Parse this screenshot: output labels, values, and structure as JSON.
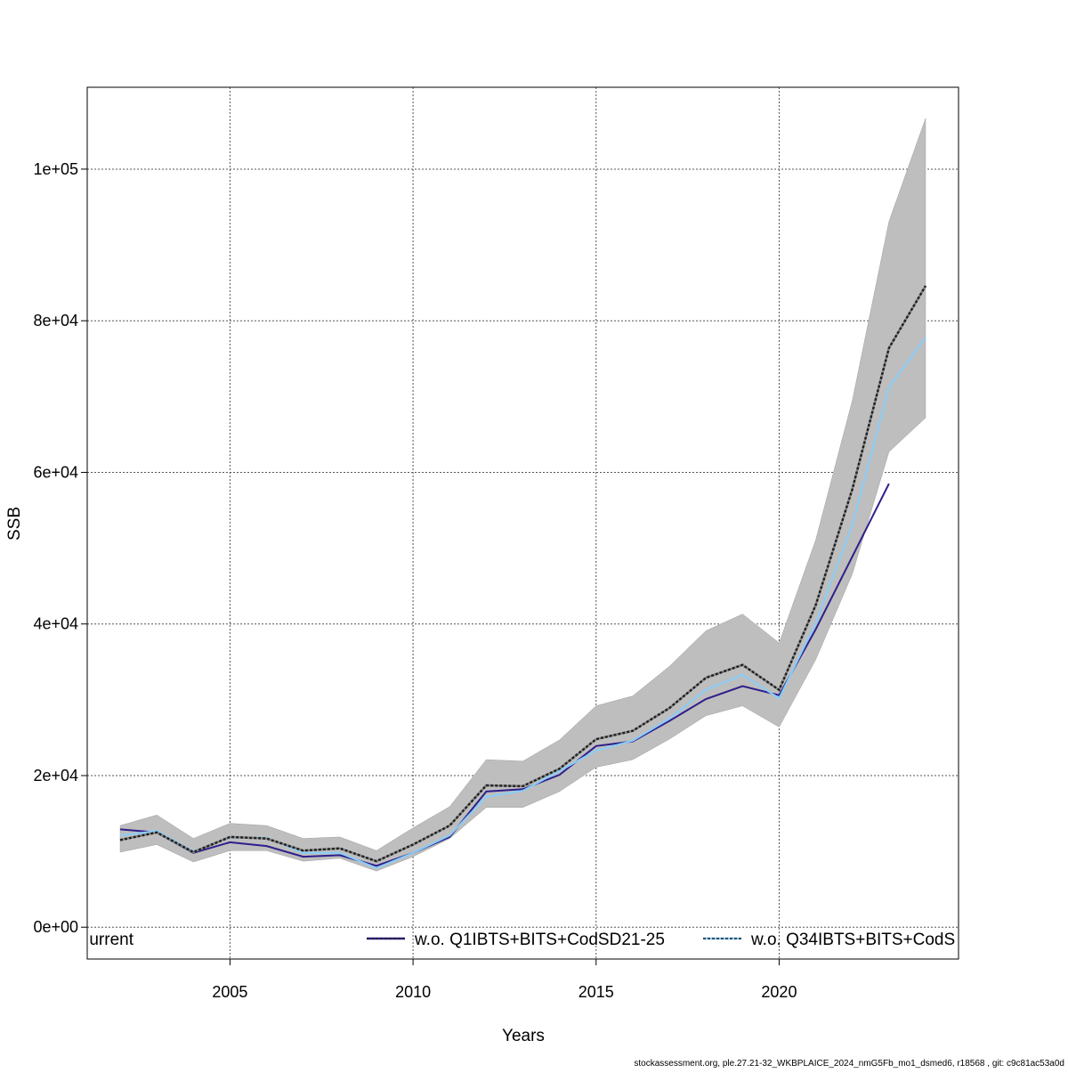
{
  "chart_data": {
    "type": "line",
    "title": "",
    "xlabel": "Years",
    "ylabel": "SSB",
    "xlim": [
      2001.1,
      2024.9
    ],
    "ylim": [
      -4200,
      110800
    ],
    "grid": true,
    "x_ticks": [
      2005,
      2010,
      2015,
      2020
    ],
    "x_tick_labels": [
      "2005",
      "2010",
      "2015",
      "2020"
    ],
    "y_ticks": [
      0,
      20000,
      40000,
      60000,
      80000,
      100000
    ],
    "y_tick_labels": [
      "0e+00",
      "2e+04",
      "4e+04",
      "6e+04",
      "8e+04",
      "1e+05"
    ],
    "legend_placement": "bottom",
    "x": [
      2002,
      2003,
      2004,
      2005,
      2006,
      2007,
      2008,
      2009,
      2010,
      2011,
      2012,
      2013,
      2014,
      2015,
      2016,
      2017,
      2018,
      2019,
      2020,
      2021,
      2022,
      2023,
      2024
    ],
    "band": {
      "color": "#bebebe",
      "lower": [
        9900,
        10900,
        8600,
        10100,
        10100,
        8700,
        9100,
        7400,
        9300,
        11700,
        15800,
        15800,
        17900,
        21100,
        22100,
        24800,
        27900,
        29200,
        26400,
        35300,
        46600,
        62700,
        67200
      ],
      "upper": [
        13400,
        14800,
        11700,
        13700,
        13400,
        11700,
        11900,
        10100,
        13100,
        15900,
        22100,
        21900,
        24700,
        29200,
        30500,
        34400,
        39100,
        41300,
        37500,
        51100,
        69500,
        93100,
        106700
      ]
    },
    "series": [
      {
        "name": "urrent",
        "color": "#222222",
        "dashed": true,
        "values": [
          11500,
          12500,
          9900,
          11900,
          11700,
          10100,
          10400,
          8700,
          10900,
          13400,
          18700,
          18600,
          20900,
          24800,
          25900,
          28900,
          32900,
          34600,
          31300,
          42500,
          57800,
          76400,
          84600
        ]
      },
      {
        "name": "w.o. Q1IBTS+BITS+CodSD21-25",
        "color": "#2e1e8c",
        "dashed": false,
        "values": [
          12900,
          12500,
          9800,
          11200,
          10700,
          9300,
          9500,
          8100,
          9800,
          11900,
          17900,
          18200,
          20100,
          23900,
          24500,
          27200,
          30100,
          31800,
          30600,
          39300,
          48900,
          58500,
          null
        ]
      },
      {
        "name": "w.o. Q34IBTS+BITS+CodS",
        "color": "#87cefa",
        "dashed": false,
        "values": [
          12100,
          12700,
          10000,
          11800,
          11800,
          9800,
          9800,
          7800,
          9800,
          12100,
          17200,
          18000,
          20600,
          23300,
          24600,
          27500,
          31300,
          33300,
          30200,
          40100,
          53100,
          71200,
          77800
        ]
      }
    ]
  },
  "footer": "stockassessment.org, ple.27.21-32_WKBPLAICE_2024_nmG5Fb_mo1_dsmed6, r18568 , git: c9c81ac53a0d"
}
